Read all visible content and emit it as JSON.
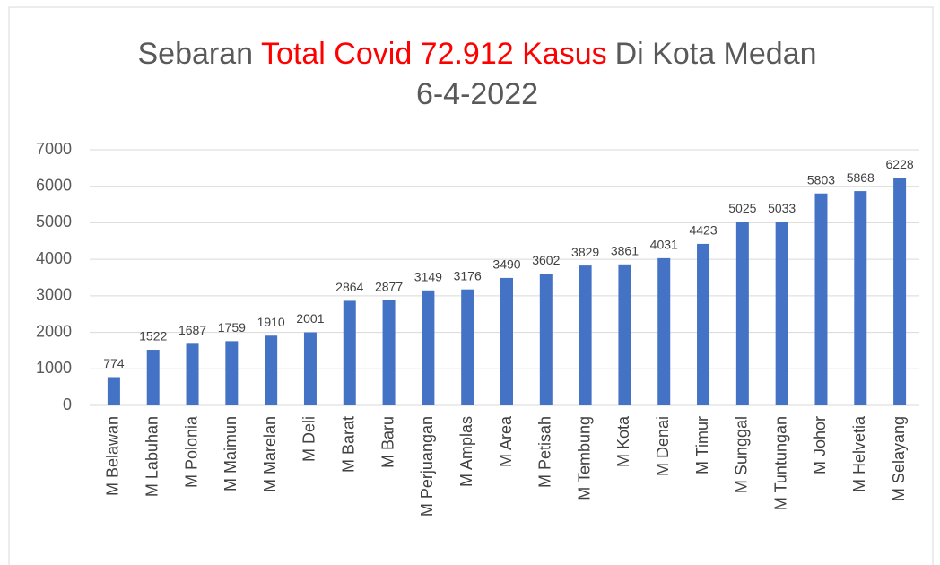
{
  "chart_data": {
    "type": "bar",
    "title": [
      "Sebaran",
      "Total Covid 72.912 Kasus",
      "Di Kota Medan"
    ],
    "title_highlight_color": "#ff0000",
    "subtitle": "6-4-2022",
    "categories": [
      "M Belawan",
      "M Labuhan",
      "M Polonia",
      "M Maimun",
      "M Marelan",
      "M Deli",
      "M Barat",
      "M Baru",
      "M Perjuangan",
      "M Amplas",
      "M Area",
      "M Petisah",
      "M Tembung",
      "M Kota",
      "M Denai",
      "M Timur",
      "M Sunggal",
      "M Tuntungan",
      "M Johor",
      "M Helvetia",
      "M Selayang"
    ],
    "values": [
      774,
      1522,
      1687,
      1759,
      1910,
      2001,
      2864,
      2877,
      3149,
      3176,
      3490,
      3602,
      3829,
      3861,
      4031,
      4423,
      5025,
      5033,
      5803,
      5868,
      6228
    ],
    "color": "#4472c4",
    "ylim": [
      0,
      7000
    ],
    "yticks": [
      0,
      1000,
      2000,
      3000,
      4000,
      5000,
      6000,
      7000
    ],
    "grid": true
  }
}
